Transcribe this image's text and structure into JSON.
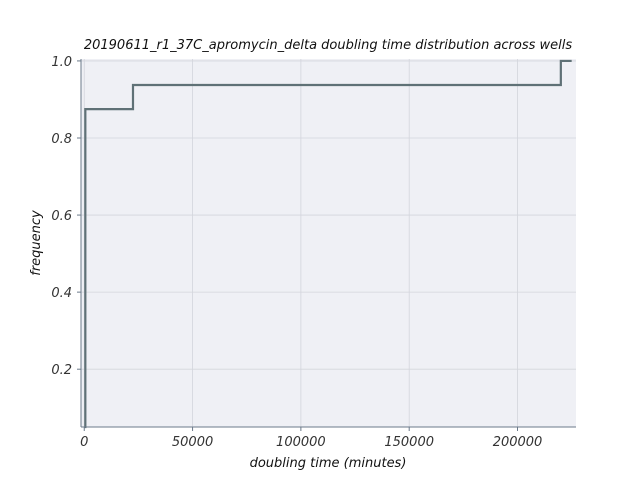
{
  "chart_data": {
    "type": "line",
    "step": true,
    "title": "20190611_r1_37C_apromycin_delta doubling time distribution across wells",
    "xlabel": "doubling time (minutes)",
    "ylabel": "frequency",
    "xlim": [
      -1500,
      227000
    ],
    "ylim": [
      0.05,
      1.005
    ],
    "x_ticks": [
      0,
      50000,
      100000,
      150000,
      200000
    ],
    "x_tick_labels": [
      "0",
      "50000",
      "100000",
      "150000",
      "200000"
    ],
    "y_ticks": [
      0.2,
      0.4,
      0.6,
      0.8,
      1.0
    ],
    "y_tick_labels": [
      "0.2",
      "0.4",
      "0.6",
      "0.8",
      "1.0"
    ],
    "grid": true,
    "series": [
      {
        "color": "#5f7176",
        "x": [
          0,
          500,
          22500,
          220000,
          225000
        ],
        "y": [
          0.05,
          0.875,
          0.9375,
          1.0,
          1.0
        ]
      }
    ],
    "colors": {
      "plot_background": "#eff0f5",
      "grid": "#d3d5dc",
      "axis": "#6b7a8a"
    }
  }
}
